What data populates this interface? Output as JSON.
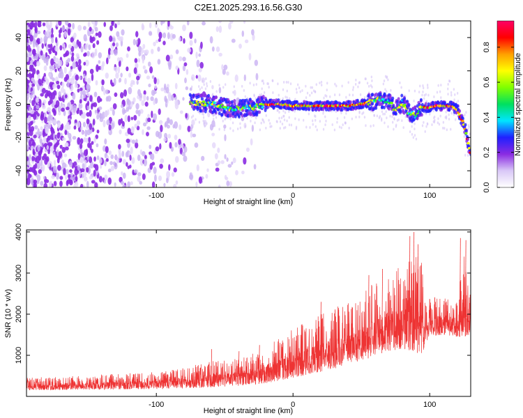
{
  "title": "C2E1.2025.293.16.56.G30",
  "chart_data": [
    {
      "type": "heatmap",
      "name": "spectrogram",
      "xlabel": "Height of straight line (km)",
      "ylabel": "Frequency (Hz)",
      "xlim": [
        -195,
        130
      ],
      "ylim": [
        -50,
        50
      ],
      "x_ticks": [
        -100,
        0,
        100
      ],
      "y_ticks": [
        -40,
        -20,
        0,
        20,
        40
      ],
      "noise_region_x": [
        -195,
        -20
      ],
      "signal_start_x": -75,
      "signal_track": {
        "x": [
          -75,
          -70,
          -60,
          -50,
          -40,
          -30,
          -20,
          -10,
          0,
          10,
          20,
          30,
          40,
          50,
          55,
          60,
          65,
          70,
          75,
          80,
          85,
          90,
          93,
          97,
          100,
          105,
          110,
          115,
          120,
          125,
          130
        ],
        "frequency": [
          1,
          1,
          0,
          -2,
          -3,
          -2,
          0,
          0,
          -1,
          -1,
          -1,
          -1,
          -1,
          0,
          1,
          2,
          3,
          1,
          -3,
          1,
          -5,
          -7,
          -2,
          -2,
          -2,
          -1,
          -1,
          -1,
          -3,
          -12,
          -30
        ]
      },
      "colorbar": {
        "label": "Normalized spectral amplitude",
        "ticks": [
          0.0,
          0.2,
          0.4,
          0.6,
          0.8
        ],
        "range": [
          0.0,
          0.95
        ],
        "colormap": [
          "#ffffff",
          "#d9c8f7",
          "#8a2be2",
          "#2020ff",
          "#00e5ff",
          "#00e060",
          "#7fff00",
          "#ffff00",
          "#ffa000",
          "#ff0000",
          "#ff0066"
        ]
      }
    },
    {
      "type": "line",
      "name": "snr",
      "xlabel": "Height of straight line (km)",
      "ylabel": "SNR (10 * v/v)",
      "xlim": [
        -195,
        130
      ],
      "ylim": [
        0,
        4050
      ],
      "x_ticks": [
        -100,
        0,
        100
      ],
      "y_ticks": [
        1000,
        2000,
        3000,
        4000
      ],
      "color": "#ee3333",
      "envelope": {
        "x": [
          -195,
          -160,
          -130,
          -100,
          -80,
          -60,
          -40,
          -20,
          0,
          20,
          40,
          50,
          60,
          70,
          80,
          90,
          95,
          97,
          100,
          110,
          120,
          125,
          130
        ],
        "low": [
          150,
          160,
          170,
          180,
          200,
          220,
          260,
          320,
          450,
          600,
          750,
          850,
          1000,
          1100,
          1150,
          1100,
          900,
          1300,
          1450,
          1500,
          1450,
          1450,
          1500
        ],
        "high": [
          450,
          500,
          550,
          600,
          700,
          850,
          950,
          1200,
          1650,
          2000,
          2300,
          2500,
          2800,
          3000,
          3200,
          3500,
          3200,
          2300,
          2400,
          2450,
          2400,
          3700,
          2600
        ],
        "spikes": [
          [
            -60,
            1150
          ],
          [
            -40,
            1100
          ],
          [
            -25,
            1250
          ],
          [
            20,
            2300
          ],
          [
            55,
            2950
          ],
          [
            65,
            3100
          ],
          [
            85,
            3900
          ],
          [
            88,
            4000
          ],
          [
            91,
            3700
          ],
          [
            122,
            3850
          ],
          [
            126,
            3800
          ]
        ]
      }
    }
  ]
}
